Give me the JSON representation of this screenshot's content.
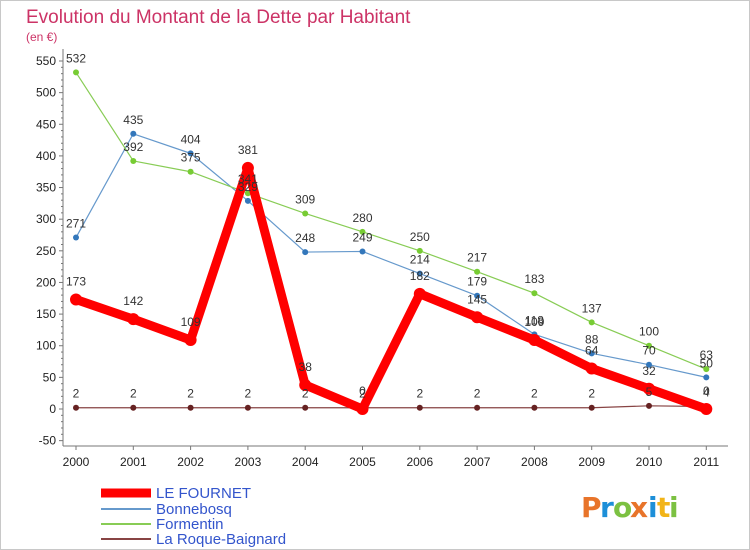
{
  "chart_data": {
    "type": "line",
    "title": "Evolution du Montant de la Dette par Habitant",
    "subtitle": "(en €)",
    "x": [
      "2000",
      "2001",
      "2002",
      "2003",
      "2004",
      "2005",
      "2006",
      "2007",
      "2008",
      "2009",
      "2010",
      "2011"
    ],
    "y_ticks": [
      "-50",
      "0",
      "50",
      "100",
      "150",
      "200",
      "250",
      "300",
      "350",
      "400",
      "450",
      "500",
      "550"
    ],
    "ylim": [
      -50,
      550
    ],
    "grid": false,
    "legend_position": "bottom-left",
    "series": [
      {
        "name": "LE FOURNET",
        "color": "#ff0000",
        "values": [
          173,
          142,
          109,
          381,
          38,
          0,
          182,
          145,
          109,
          64,
          32,
          0
        ]
      },
      {
        "name": "Bonnebosq",
        "color": "#6699cc",
        "values": [
          271,
          435,
          404,
          329,
          248,
          249,
          214,
          179,
          118,
          88,
          70,
          50
        ]
      },
      {
        "name": "Formentin",
        "color": "#88cc55",
        "values": [
          532,
          392,
          375,
          341,
          309,
          280,
          250,
          217,
          183,
          137,
          100,
          63
        ]
      },
      {
        "name": "La Roque-Baignard",
        "color": "#884444",
        "values": [
          2,
          2,
          2,
          2,
          2,
          2,
          2,
          2,
          2,
          2,
          5,
          4
        ]
      }
    ]
  },
  "colors": {
    "title": "#cc3366",
    "legend_text": "#3355cc",
    "marker_fournet": "#cc0000",
    "marker_bonnebosq": "#3377bb",
    "marker_formentin": "#77cc33",
    "marker_roque": "#662222"
  },
  "logo": {
    "letters": [
      "P",
      "r",
      "o",
      "x",
      "i",
      "t",
      "i"
    ]
  }
}
